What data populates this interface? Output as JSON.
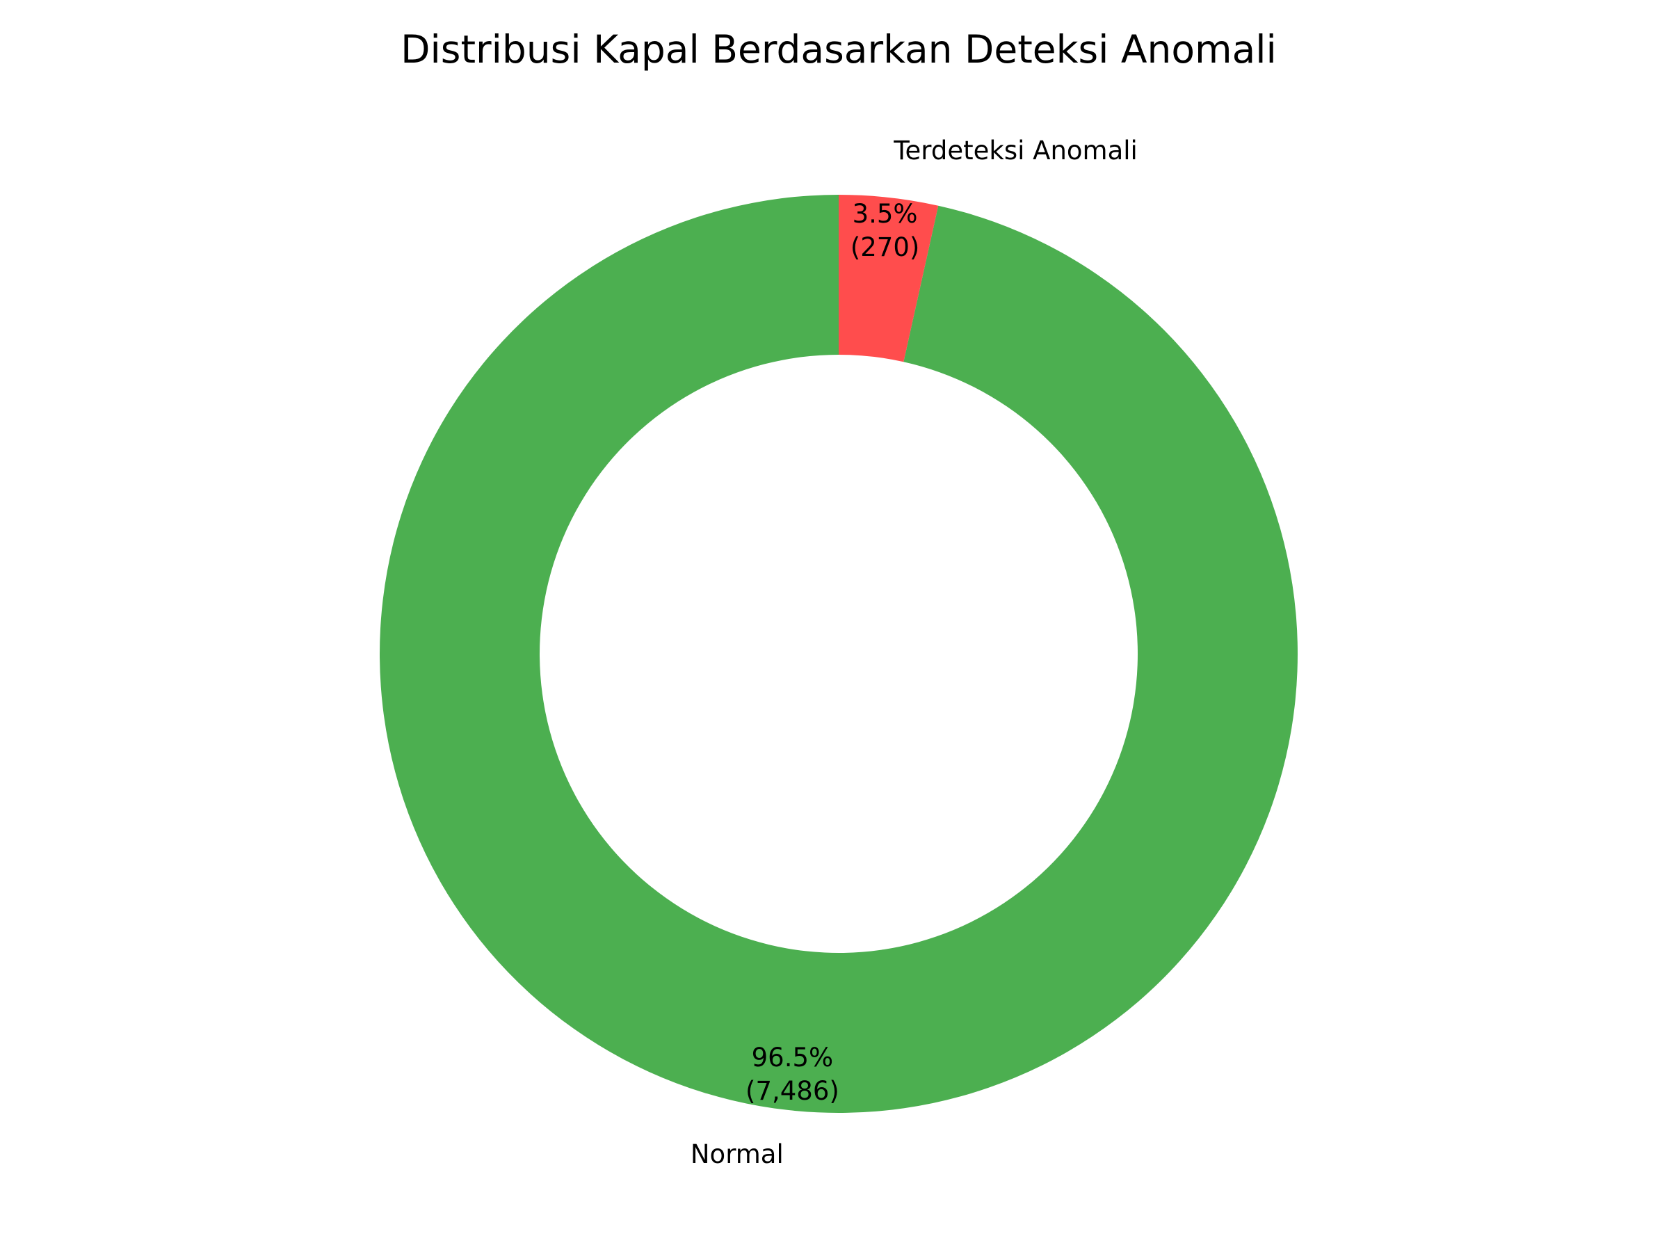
{
  "chart_data": {
    "type": "pie",
    "title": "Distribusi Kapal Berdasarkan Deteksi Anomali",
    "donut": true,
    "start_angle_deg": 90,
    "direction": "counterclockwise",
    "slices": [
      {
        "label": "Normal",
        "value": 7486,
        "percent": 96.5,
        "pct_text": "96.5%",
        "count_text": "(7,486)",
        "color": "#4caf50"
      },
      {
        "label": "Terdeteksi Anomali",
        "value": 270,
        "percent": 3.5,
        "pct_text": "3.5%",
        "count_text": "(270)",
        "color": "#ff4d4d"
      }
    ],
    "legend": "none"
  }
}
